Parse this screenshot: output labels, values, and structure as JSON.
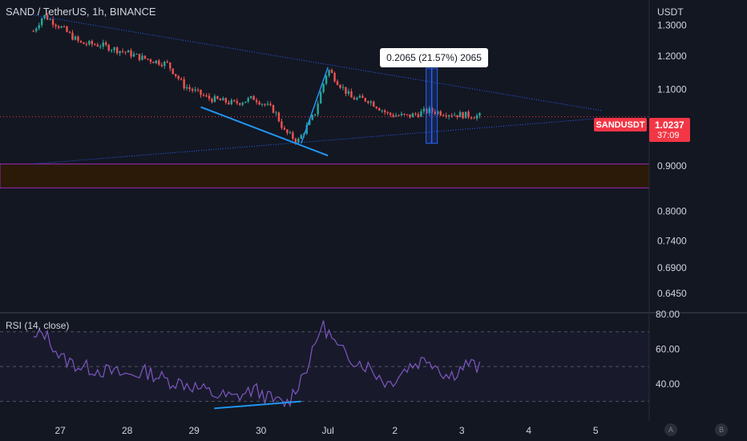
{
  "header": {
    "symbol_title": "SAND / TetherUS, 1h, BINANCE",
    "currency": "USDT"
  },
  "measure_label": "0.2065 (21.57%) 2065",
  "last_price": {
    "symbol": "SANDUSDT",
    "price": "1.0237",
    "countdown": "37:09"
  },
  "rsi": {
    "title": "RSI (14, close)"
  },
  "corner_buttons": [
    "A",
    "B"
  ],
  "colors": {
    "background": "#131722",
    "up": "#26a69a",
    "down": "#ef5350",
    "trendline": "#2962ff",
    "divergence": "#2196f3",
    "rsi_line": "#7e57c2",
    "zone_fill": "#2a1a07",
    "zone_border": "#9c27b0",
    "last_price": "#f23645"
  },
  "chart_data": [
    {
      "type": "candlestick",
      "title": "SAND / TetherUS, 1h, BINANCE",
      "y_unit": "USDT",
      "y_scale": "log",
      "ylim": [
        0.62,
        1.36
      ],
      "y_ticks": [
        "1.3000",
        "1.2000",
        "1.1000",
        "0.9000",
        "0.8000",
        "0.7400",
        "0.6900",
        "0.6450"
      ],
      "x_ticks": [
        "27",
        "28",
        "29",
        "30",
        "Jul",
        "2",
        "3",
        "4",
        "5"
      ],
      "grid": false,
      "last_price": 1.0237,
      "series": [
        {
          "name": "price_path",
          "x": [
            26.6,
            26.75,
            27.0,
            27.3,
            27.6,
            28.0,
            28.2,
            28.6,
            28.85,
            29.2,
            29.6,
            29.9,
            30.2,
            30.35,
            30.55,
            30.8,
            31.0,
            31.15,
            31.35,
            31.6,
            31.9,
            32.2,
            32.5,
            32.9,
            33.3
          ],
          "values": [
            1.28,
            1.335,
            1.295,
            1.24,
            1.235,
            1.21,
            1.195,
            1.175,
            1.11,
            1.075,
            1.06,
            1.075,
            1.04,
            0.985,
            0.96,
            1.03,
            1.16,
            1.12,
            1.075,
            1.07,
            1.03,
            1.025,
            1.04,
            1.03,
            1.025
          ]
        }
      ],
      "annotations": {
        "triangle_upper": [
          [
            26.6,
            1.335
          ],
          [
            35.1,
            1.04
          ]
        ],
        "triangle_lower": [
          [
            26.6,
            0.905
          ],
          [
            35.1,
            1.02
          ]
        ],
        "divergence_price": [
          [
            29.1,
            1.05
          ],
          [
            31.0,
            0.925
          ]
        ],
        "rally_line": [
          [
            30.6,
            0.955
          ],
          [
            31.0,
            1.165
          ]
        ],
        "measure": {
          "x": 32.55,
          "from": 0.955,
          "to": 1.162,
          "label": "0.2065 (21.57%) 2065"
        },
        "support_zone": [
          0.85,
          0.905
        ]
      }
    },
    {
      "type": "line",
      "title": "RSI (14, close)",
      "ylim": [
        22,
        80
      ],
      "y_ticks": [
        "80.00",
        "60.00",
        "40.00"
      ],
      "bands": [
        70,
        50,
        30
      ],
      "x_ticks": [
        "27",
        "28",
        "29",
        "30",
        "Jul",
        "2",
        "3",
        "4",
        "5"
      ],
      "series": [
        {
          "name": "RSI",
          "x": [
            26.6,
            26.75,
            26.9,
            27.0,
            27.3,
            27.6,
            28.0,
            28.3,
            28.6,
            28.9,
            29.3,
            29.6,
            29.9,
            30.2,
            30.4,
            30.55,
            30.75,
            30.9,
            31.0,
            31.15,
            31.35,
            31.6,
            31.9,
            32.2,
            32.5,
            32.8,
            33.1,
            33.3
          ],
          "values": [
            65,
            70,
            62,
            55,
            50,
            48,
            45,
            47,
            42,
            40,
            34,
            32,
            37,
            30,
            29,
            40,
            55,
            74,
            70,
            60,
            55,
            50,
            40,
            50,
            55,
            44,
            52,
            48
          ]
        },
        {
          "name": "divergence_rsi",
          "x": [
            29.3,
            30.6
          ],
          "values": [
            26,
            30
          ]
        }
      ]
    }
  ]
}
